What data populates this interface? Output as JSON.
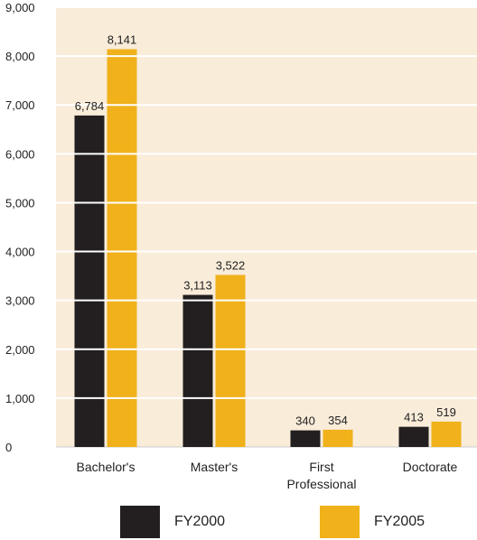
{
  "chart_data": {
    "type": "bar",
    "categories": [
      "Bachelor's",
      "Master's",
      "First Professional",
      "Doctorate"
    ],
    "category_lines": [
      [
        "Bachelor's"
      ],
      [
        "Master's"
      ],
      [
        "First",
        "Professional"
      ],
      [
        "Doctorate"
      ]
    ],
    "series": [
      {
        "name": "FY2000",
        "values": [
          6784,
          3113,
          340,
          413
        ],
        "labels": [
          "6,784",
          "3,113",
          "340",
          "413"
        ],
        "color": "#231f20"
      },
      {
        "name": "FY2005",
        "values": [
          8141,
          3522,
          354,
          519
        ],
        "labels": [
          "8,141",
          "3,522",
          "354",
          "519"
        ],
        "color": "#f0b11b"
      }
    ],
    "yticks": [
      0,
      1000,
      2000,
      3000,
      4000,
      5000,
      6000,
      7000,
      8000,
      9000
    ],
    "ytick_labels": [
      "0",
      "1,000",
      "2,000",
      "3,000",
      "4,000",
      "5,000",
      "6,000",
      "7,000",
      "8,000",
      "9,000"
    ],
    "ylim": [
      0,
      9000
    ],
    "title": "",
    "xlabel": "",
    "ylabel": "",
    "grid": true,
    "legend_position": "bottom",
    "background_color": "#f9ecd9",
    "grid_color": "#ffffff"
  },
  "legend": {
    "fy2000_label": "FY2000",
    "fy2005_label": "FY2005"
  }
}
